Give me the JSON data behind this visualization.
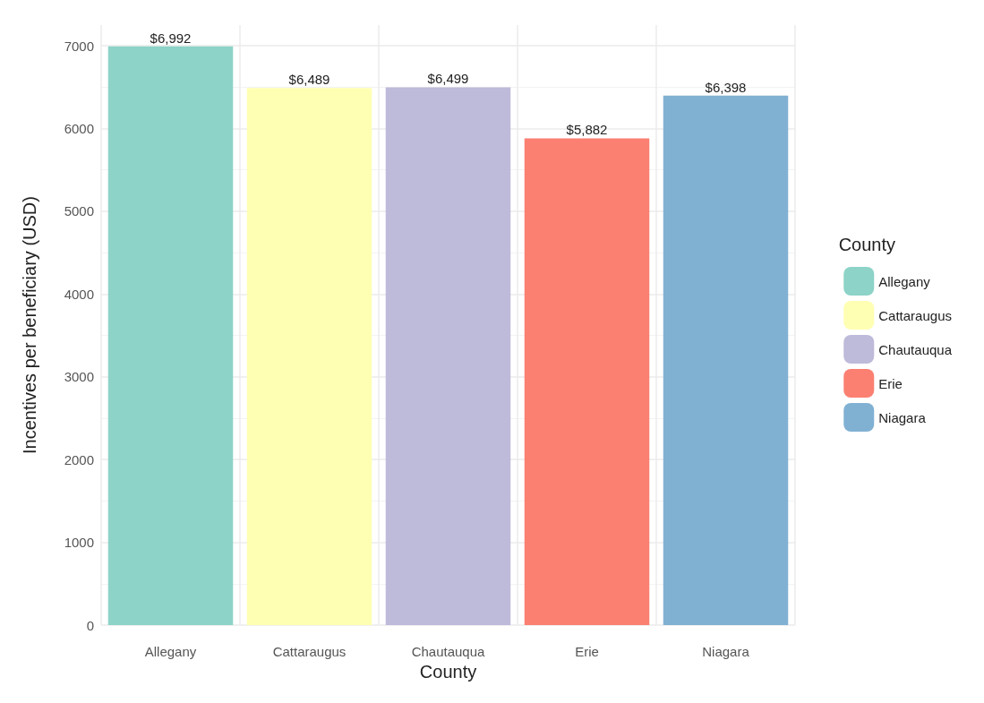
{
  "chart_data": {
    "type": "bar",
    "xlabel": "County",
    "ylabel": "Incentives per beneficiary (USD)",
    "legend_title": "County",
    "categories": [
      "Allegany",
      "Cattaraugus",
      "Chautauqua",
      "Erie",
      "Niagara"
    ],
    "series": [
      {
        "name": "Allegany",
        "color": "#8dd3c7",
        "values": [
          6992,
          null,
          null,
          null,
          null
        ],
        "value_labels": [
          "$6,992",
          null,
          null,
          null,
          null
        ]
      },
      {
        "name": "Cattaraugus",
        "color": "#ffffb3",
        "values": [
          null,
          6489,
          null,
          null,
          null
        ],
        "value_labels": [
          null,
          "$6,489",
          null,
          null,
          null
        ]
      },
      {
        "name": "Chautauqua",
        "color": "#bebada",
        "values": [
          null,
          null,
          6499,
          null,
          null
        ],
        "value_labels": [
          null,
          null,
          "$6,499",
          null,
          null
        ]
      },
      {
        "name": "Erie",
        "color": "#fb8072",
        "values": [
          null,
          null,
          null,
          5882,
          null
        ],
        "value_labels": [
          null,
          null,
          null,
          "$5,882",
          null
        ]
      },
      {
        "name": "Niagara",
        "color": "#80b1d3",
        "values": [
          null,
          null,
          null,
          null,
          6398
        ],
        "value_labels": [
          null,
          null,
          null,
          null,
          "$6,398"
        ]
      }
    ],
    "ylim": [
      0,
      7250
    ],
    "yticks": [
      0,
      1000,
      2000,
      3000,
      4000,
      5000,
      6000,
      7000
    ],
    "grid": true,
    "legend": "right"
  }
}
